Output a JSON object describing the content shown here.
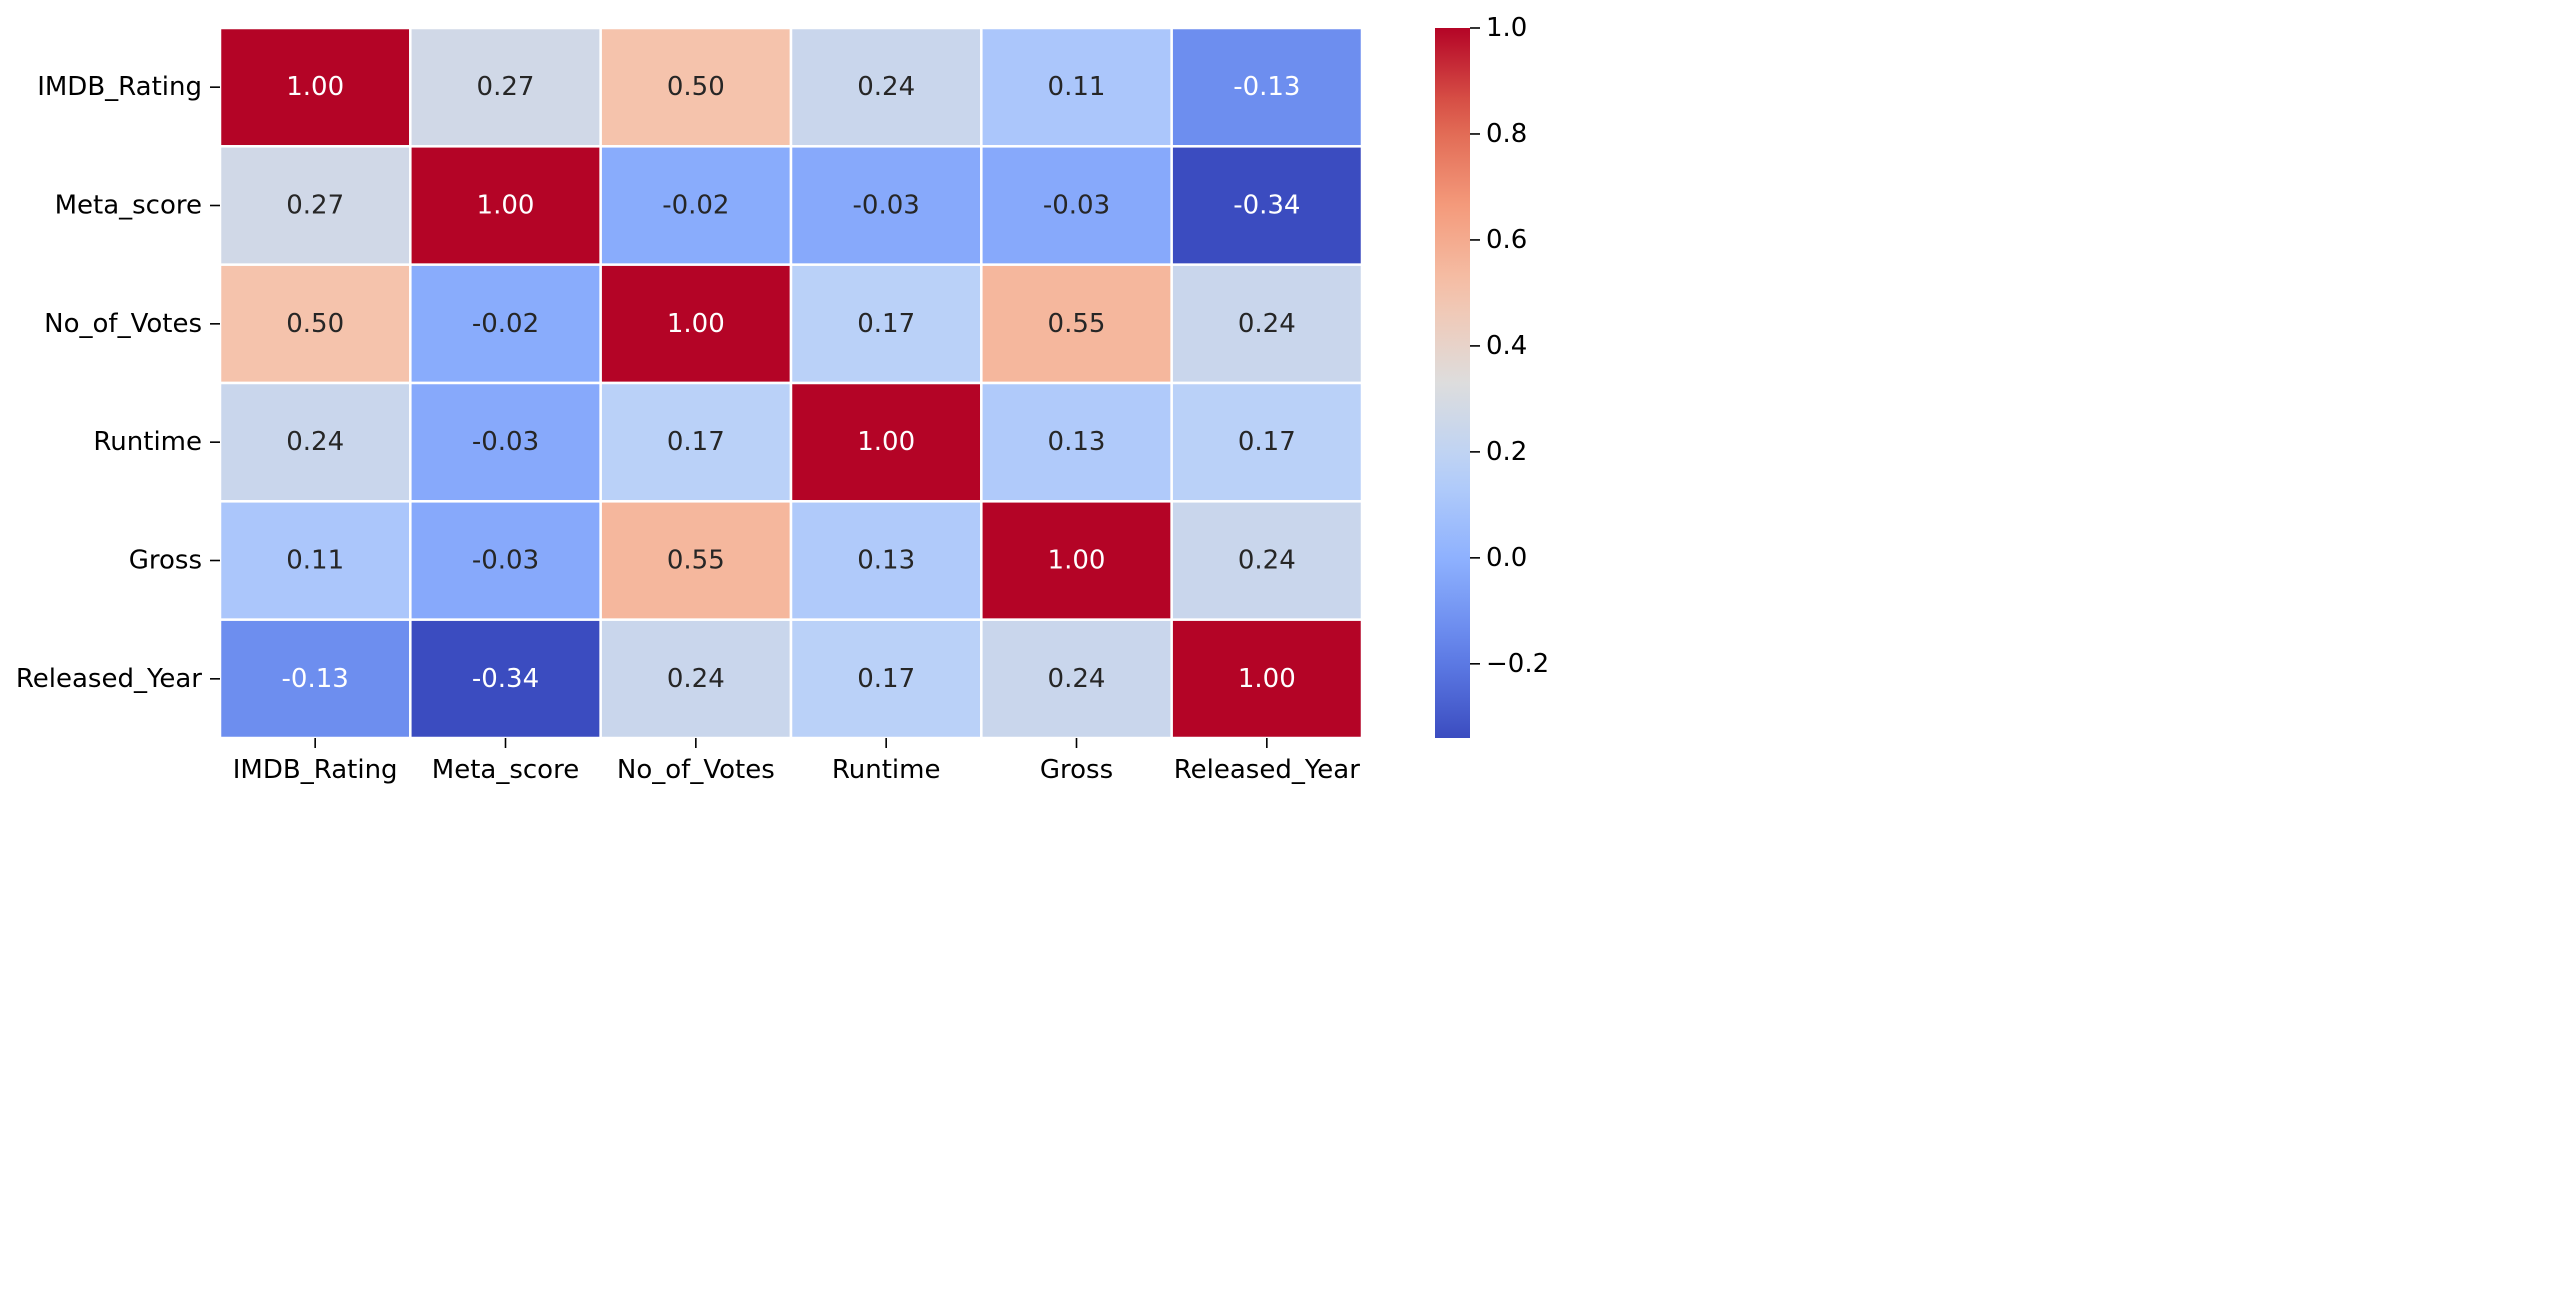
{
  "chart_data": {
    "type": "heatmap",
    "title": "",
    "xlabel": "",
    "ylabel": "",
    "x_labels": [
      "IMDB_Rating",
      "Meta_score",
      "No_of_Votes",
      "Runtime",
      "Gross",
      "Released_Year"
    ],
    "y_labels": [
      "IMDB_Rating",
      "Meta_score",
      "No_of_Votes",
      "Runtime",
      "Gross",
      "Released_Year"
    ],
    "values": [
      [
        1.0,
        0.27,
        0.5,
        0.24,
        0.11,
        -0.13
      ],
      [
        0.27,
        1.0,
        -0.02,
        -0.03,
        -0.03,
        -0.34
      ],
      [
        0.5,
        -0.02,
        1.0,
        0.17,
        0.55,
        0.24
      ],
      [
        0.24,
        -0.03,
        0.17,
        1.0,
        0.13,
        0.17
      ],
      [
        0.11,
        -0.03,
        0.55,
        0.13,
        1.0,
        0.24
      ],
      [
        -0.13,
        -0.34,
        0.24,
        0.17,
        0.24,
        1.0
      ]
    ],
    "annotation_format": "2 decimals",
    "colormap": "coolwarm",
    "colorbar": {
      "vmin": -0.34,
      "vmax": 1.0,
      "ticks": [
        -0.2,
        0.0,
        0.2,
        0.4,
        0.6,
        0.8,
        1.0
      ],
      "tick_labels": [
        "−0.2",
        "0.0",
        "0.2",
        "0.4",
        "0.6",
        "0.8",
        "1.0"
      ]
    },
    "cell_border_color": "#ffffff",
    "grid": false,
    "legend": "colorbar-right"
  }
}
